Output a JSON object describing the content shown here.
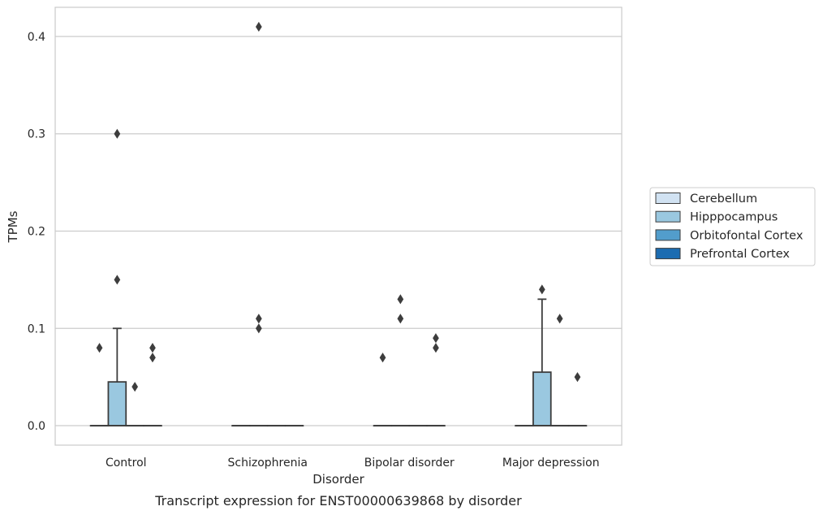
{
  "chart_data": {
    "type": "box",
    "title": "",
    "caption": "Transcript expression for ENST00000639868 by disorder",
    "xlabel": "Disorder",
    "ylabel": "TPMs",
    "ylim": [
      -0.02,
      0.43
    ],
    "yticks": [
      0.0,
      0.1,
      0.2,
      0.3,
      0.4
    ],
    "ytick_labels": [
      "0.0",
      "0.1",
      "0.2",
      "0.3",
      "0.4"
    ],
    "grid": "horizontal",
    "legend_position": "right",
    "categories": [
      "Control",
      "Schizophrenia",
      "Bipolar disorder",
      "Major depression"
    ],
    "series": [
      {
        "name": "Cerebellum",
        "color": "#d1e2f2",
        "boxes": [
          {
            "q1": 0.0,
            "median": 0.0,
            "q3": 0.0,
            "whisker_low": 0.0,
            "whisker_high": 0.0,
            "outliers": [
              0.08
            ]
          },
          {
            "q1": 0.0,
            "median": 0.0,
            "q3": 0.0,
            "whisker_low": 0.0,
            "whisker_high": 0.0,
            "outliers": []
          },
          {
            "q1": 0.0,
            "median": 0.0,
            "q3": 0.0,
            "whisker_low": 0.0,
            "whisker_high": 0.0,
            "outliers": [
              0.07
            ]
          },
          {
            "q1": 0.0,
            "median": 0.0,
            "q3": 0.0,
            "whisker_low": 0.0,
            "whisker_high": 0.0,
            "outliers": []
          }
        ]
      },
      {
        "name": "Hipppocampus",
        "color": "#9ac8e0",
        "boxes": [
          {
            "q1": 0.0,
            "median": 0.0,
            "q3": 0.045,
            "whisker_low": 0.0,
            "whisker_high": 0.1,
            "outliers": [
              0.15,
              0.3
            ]
          },
          {
            "q1": 0.0,
            "median": 0.0,
            "q3": 0.0,
            "whisker_low": 0.0,
            "whisker_high": 0.0,
            "outliers": [
              0.1,
              0.11,
              0.41
            ]
          },
          {
            "q1": 0.0,
            "median": 0.0,
            "q3": 0.0,
            "whisker_low": 0.0,
            "whisker_high": 0.0,
            "outliers": [
              0.11,
              0.13
            ]
          },
          {
            "q1": 0.0,
            "median": 0.0,
            "q3": 0.055,
            "whisker_low": 0.0,
            "whisker_high": 0.13,
            "outliers": [
              0.14
            ]
          }
        ]
      },
      {
        "name": "Orbitofontal Cortex",
        "color": "#529dcc",
        "boxes": [
          {
            "q1": 0.0,
            "median": 0.0,
            "q3": 0.0,
            "whisker_low": 0.0,
            "whisker_high": 0.0,
            "outliers": [
              0.04
            ]
          },
          {
            "q1": 0.0,
            "median": 0.0,
            "q3": 0.0,
            "whisker_low": 0.0,
            "whisker_high": 0.0,
            "outliers": []
          },
          {
            "q1": 0.0,
            "median": 0.0,
            "q3": 0.0,
            "whisker_low": 0.0,
            "whisker_high": 0.0,
            "outliers": []
          },
          {
            "q1": 0.0,
            "median": 0.0,
            "q3": 0.0,
            "whisker_low": 0.0,
            "whisker_high": 0.0,
            "outliers": [
              0.11
            ]
          }
        ]
      },
      {
        "name": "Prefrontal Cortex",
        "color": "#1c6cb1",
        "boxes": [
          {
            "q1": 0.0,
            "median": 0.0,
            "q3": 0.0,
            "whisker_low": 0.0,
            "whisker_high": 0.0,
            "outliers": [
              0.07,
              0.08
            ]
          },
          {
            "q1": 0.0,
            "median": 0.0,
            "q3": 0.0,
            "whisker_low": 0.0,
            "whisker_high": 0.0,
            "outliers": []
          },
          {
            "q1": 0.0,
            "median": 0.0,
            "q3": 0.0,
            "whisker_low": 0.0,
            "whisker_high": 0.0,
            "outliers": [
              0.08,
              0.09
            ]
          },
          {
            "q1": 0.0,
            "median": 0.0,
            "q3": 0.0,
            "whisker_low": 0.0,
            "whisker_high": 0.0,
            "outliers": [
              0.05
            ]
          }
        ]
      }
    ]
  }
}
